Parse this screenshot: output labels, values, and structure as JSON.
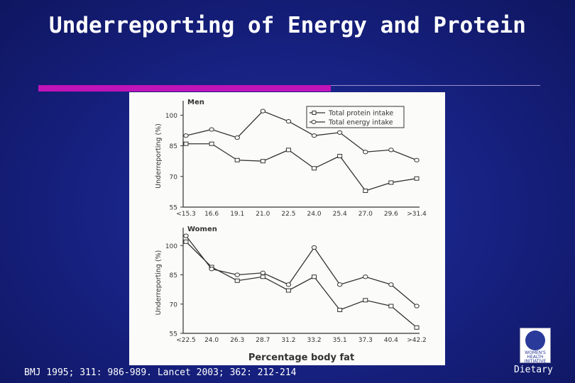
{
  "slide": {
    "title": "Underreporting of Energy and Protein",
    "citation": "BMJ 1995; 311: 986-989.  Lancet 2003; 362: 212-214",
    "footer_label": "Dietary",
    "logo_text": "WOMEN'S HEALTH INITIATIVE",
    "accent_color": "#c013b8"
  },
  "chart_data": [
    {
      "type": "line",
      "panel": "Men",
      "ylabel": "Underreporting (%)",
      "xlabel": "",
      "ylim": [
        55,
        105
      ],
      "yticks": [
        55,
        70,
        85,
        100
      ],
      "categories": [
        "<15.3",
        "16.6",
        "19.1",
        "21.0",
        "22.5",
        "24.0",
        "25.4",
        "27.0",
        "29.6",
        ">31.4"
      ],
      "legend_position": "top-right",
      "series": [
        {
          "name": "Total protein intake",
          "marker": "square",
          "values": [
            86,
            86,
            78,
            77.5,
            83,
            74,
            80,
            63,
            67,
            69
          ]
        },
        {
          "name": "Total energy intake",
          "marker": "circle",
          "values": [
            90,
            93,
            89,
            102,
            97,
            90,
            91.5,
            82,
            83,
            78
          ]
        }
      ]
    },
    {
      "type": "line",
      "panel": "Women",
      "ylabel": "Underreporting (%)",
      "xlabel": "Percentage body fat",
      "ylim": [
        55,
        107
      ],
      "yticks": [
        55,
        70,
        85,
        100
      ],
      "categories": [
        "<22.5",
        "24.0",
        "26.3",
        "28.7",
        "31.2",
        "33.2",
        "35.1",
        "37.3",
        "40.4",
        ">42.2"
      ],
      "series": [
        {
          "name": "Total protein intake",
          "marker": "square",
          "values": [
            102,
            89,
            82,
            84,
            77,
            84,
            67,
            72,
            69,
            58
          ]
        },
        {
          "name": "Total energy intake",
          "marker": "circle",
          "values": [
            105,
            88,
            85,
            86,
            80,
            99,
            80,
            84,
            80,
            69
          ]
        }
      ]
    }
  ]
}
